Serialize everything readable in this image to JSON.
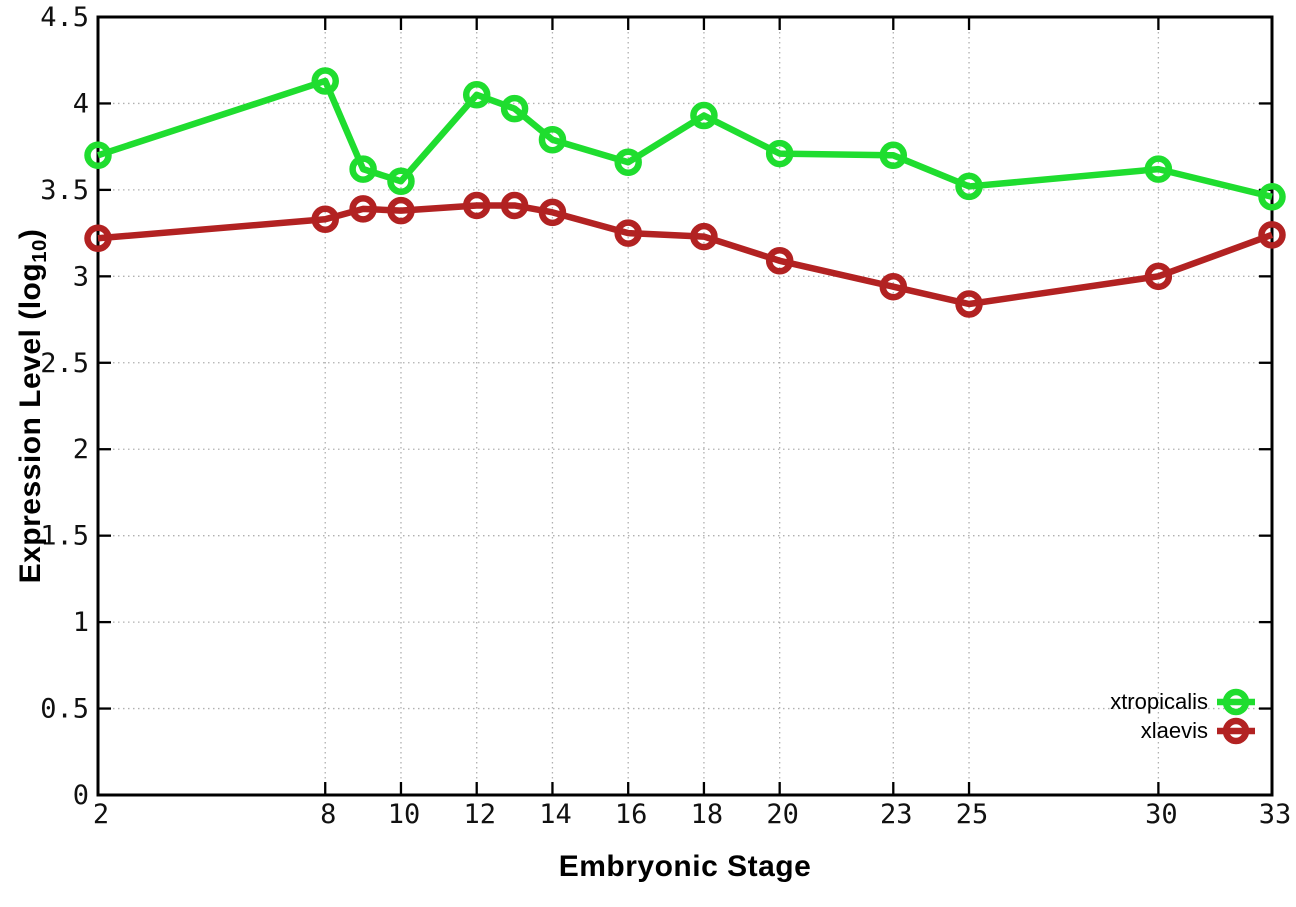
{
  "chart_data": {
    "type": "line",
    "title": "",
    "xlabel": "Embryonic Stage",
    "ylabel": {
      "prefix": "Expression Level (log",
      "sub": "10",
      "suffix": ")"
    },
    "xlim": [
      2,
      33
    ],
    "ylim": [
      0,
      4.5
    ],
    "grid": true,
    "legend_position": "bottom-right",
    "x_tick_values": [
      2,
      8,
      10,
      12,
      14,
      16,
      18,
      20,
      23,
      25,
      30,
      33
    ],
    "x_tick_labels": [
      "2",
      "8",
      "10",
      "12",
      "14",
      "16",
      "18",
      "20",
      "23",
      "25",
      "30",
      "33"
    ],
    "y_tick_values": [
      0,
      0.5,
      1,
      1.5,
      2,
      2.5,
      3,
      3.5,
      4,
      4.5
    ],
    "y_tick_labels": [
      "0",
      "0.5",
      "1",
      "1.5",
      "2",
      "2.5",
      "3",
      "3.5",
      "4",
      "4.5"
    ],
    "x": [
      2,
      8,
      9,
      10,
      12,
      13,
      14,
      16,
      18,
      20,
      23,
      25,
      30,
      33
    ],
    "series": [
      {
        "name": "xtropicalis",
        "color": "#1fdd2f",
        "marker": "open-circle",
        "values": [
          3.7,
          4.13,
          3.62,
          3.55,
          4.05,
          3.97,
          3.79,
          3.66,
          3.93,
          3.71,
          3.7,
          3.52,
          3.62,
          3.46
        ]
      },
      {
        "name": "xlaevis",
        "color": "#b22222",
        "marker": "open-circle",
        "values": [
          3.22,
          3.33,
          3.39,
          3.38,
          3.41,
          3.41,
          3.37,
          3.25,
          3.23,
          3.09,
          2.94,
          2.84,
          3.0,
          3.24
        ]
      }
    ]
  },
  "colors": {
    "background": "#ffffff",
    "axis": "#000000",
    "grid": "#b0b0b0",
    "tick_text": "#111111"
  }
}
